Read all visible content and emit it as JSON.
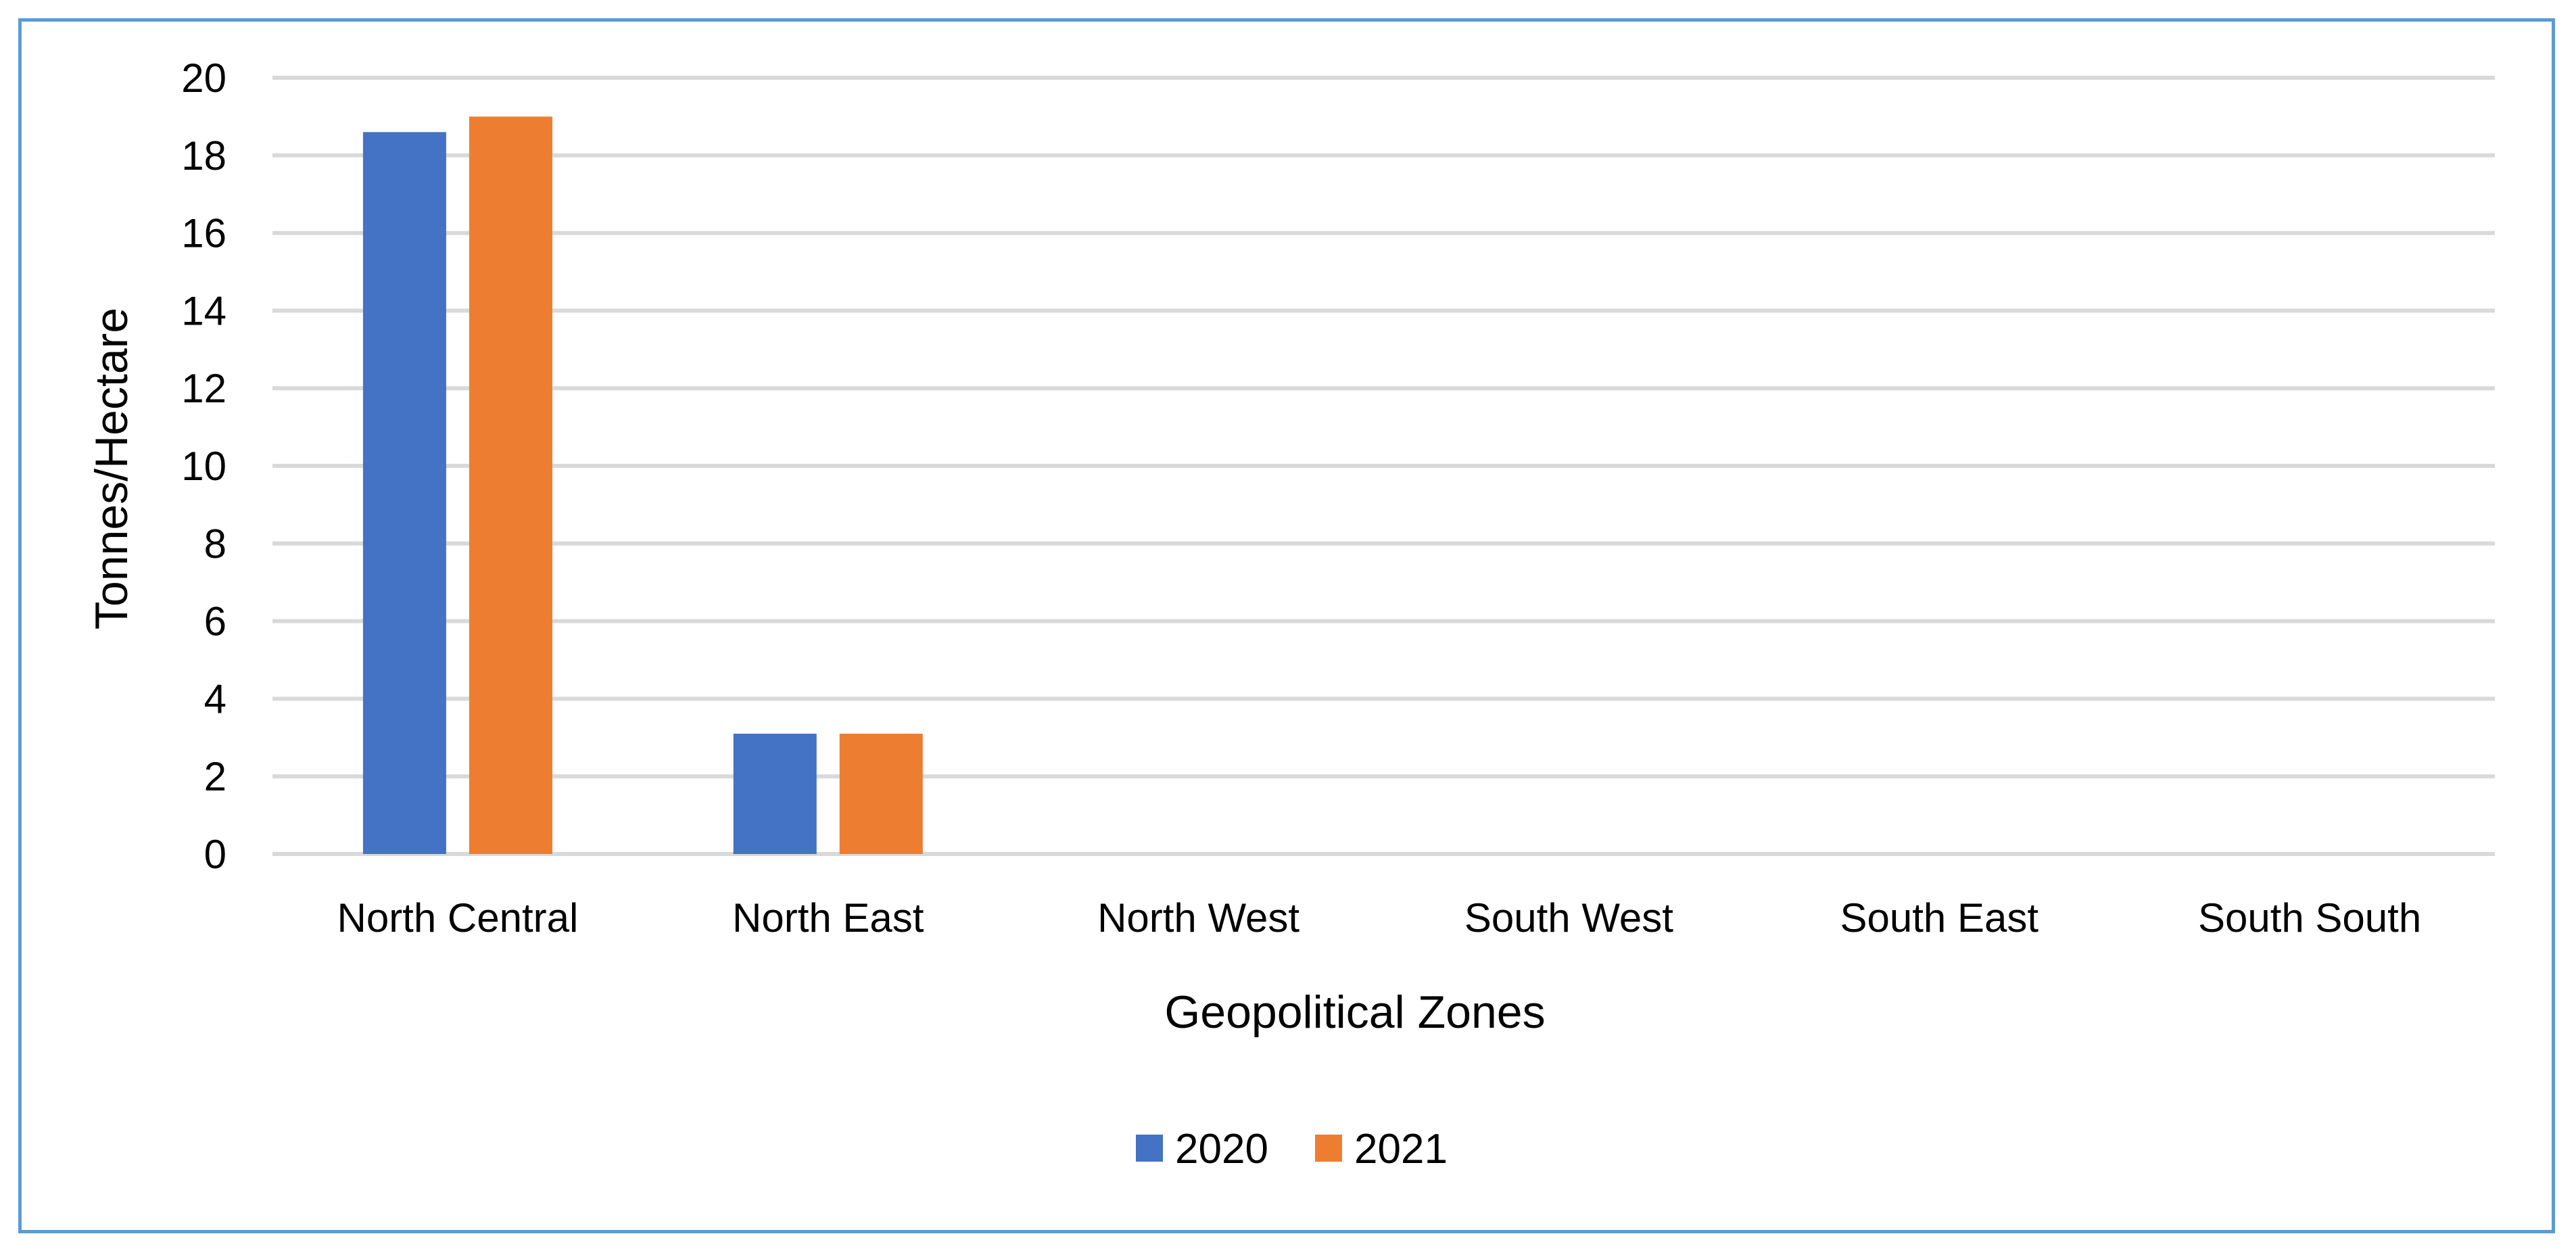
{
  "chart_data": {
    "type": "bar",
    "title": "",
    "xlabel": "Geopolitical Zones",
    "ylabel": "Tonnes/Hectare",
    "ylim": [
      0,
      20
    ],
    "yticks": [
      0,
      2,
      4,
      6,
      8,
      10,
      12,
      14,
      16,
      18,
      20
    ],
    "grid": true,
    "legend_position": "bottom",
    "categories": [
      "North Central",
      "North East",
      "North West",
      "South West",
      "South East",
      "South South"
    ],
    "series": [
      {
        "name": "2020",
        "color": "#4472C4",
        "values": [
          18.6,
          3.1,
          0,
          0,
          0,
          0
        ]
      },
      {
        "name": "2021",
        "color": "#ED7D31",
        "values": [
          19.0,
          3.1,
          0,
          0,
          0,
          0
        ]
      }
    ]
  }
}
